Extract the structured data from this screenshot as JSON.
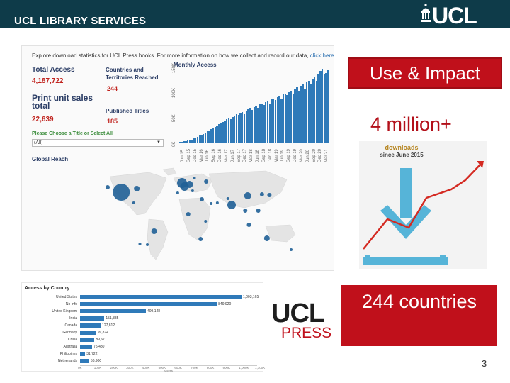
{
  "header": {
    "title": "UCL LIBRARY SERVICES",
    "logo_text": "UCL"
  },
  "dashboard": {
    "intro_text": "Explore download statistics for UCL Press books. For more information on how we collect and record our data, ",
    "intro_link": "click here.",
    "total_access_label": "Total Access",
    "total_access_value": "4,187,722",
    "countries_label_1": "Countries and",
    "countries_label_2": "Territories Reached",
    "countries_value": "244",
    "print_label_1": "Print unit sales",
    "print_label_2": "total",
    "print_value": "22,639",
    "published_label": "Published Titles",
    "published_value": "185",
    "select_label": "Please Choose a Title or Select All",
    "select_value": "(All)",
    "monthly_title": "Monthly Access",
    "monthly_yticks": [
      "0K",
      "50K",
      "100K",
      "150K"
    ],
    "monthly_xticks": [
      "Jun 15",
      "Sep 15",
      "Dec 15",
      "Mar 16",
      "Jun 16",
      "Sep 16",
      "Dec 16",
      "Mar 17",
      "Jun 17",
      "Sep 17",
      "Dec 17",
      "Mar 18",
      "Jun 18",
      "Sep 18",
      "Dec 18",
      "Mar 19",
      "Jun 19",
      "Sep 19",
      "Dec 19",
      "Mar 20",
      "Jun 20",
      "Sep 20",
      "Dec 20",
      "Mar 21"
    ],
    "monthly_values": [
      1,
      2,
      3,
      3,
      4,
      5,
      6,
      8,
      10,
      12,
      14,
      16,
      18,
      20,
      23,
      25,
      28,
      30,
      32,
      35,
      38,
      40,
      42,
      45,
      47,
      50,
      48,
      52,
      55,
      58,
      56,
      60,
      62,
      58,
      65,
      68,
      70,
      66,
      72,
      75,
      70,
      78,
      80,
      76,
      82,
      85,
      80,
      88,
      90,
      86,
      92,
      95,
      88,
      98,
      100,
      96,
      102,
      105,
      98,
      108,
      112,
      104,
      115,
      118,
      110,
      122,
      125,
      118,
      130,
      132,
      126,
      140,
      145,
      150,
      138,
      142,
      148
    ],
    "global_title": "Global Reach"
  },
  "map_bubbles": [
    {
      "lon": -100,
      "lat": 40,
      "size": 12,
      "name": "United States"
    },
    {
      "lon": 2,
      "lat": 48,
      "size": 6
    },
    {
      "lon": -2,
      "lat": 53,
      "size": 7
    },
    {
      "lon": 10,
      "lat": 51,
      "size": 5
    },
    {
      "lon": 78,
      "lat": 22,
      "size": 6
    },
    {
      "lon": 104,
      "lat": 35,
      "size": 5
    },
    {
      "lon": 135,
      "lat": -25,
      "size": 4
    },
    {
      "lon": -47,
      "lat": -15,
      "size": 4
    },
    {
      "lon": -75,
      "lat": 45,
      "size": 4
    },
    {
      "lon": 28,
      "lat": -26,
      "size": 3
    },
    {
      "lon": 121,
      "lat": 14,
      "size": 3
    },
    {
      "lon": 37,
      "lat": 55,
      "size": 3
    },
    {
      "lon": 30,
      "lat": 30,
      "size": 3
    },
    {
      "lon": 100,
      "lat": 14,
      "size": 3
    },
    {
      "lon": -58,
      "lat": -34,
      "size": 2
    },
    {
      "lon": 8,
      "lat": 9,
      "size": 3
    },
    {
      "lon": 139,
      "lat": 36,
      "size": 3
    },
    {
      "lon": 106,
      "lat": -6,
      "size": 3
    },
    {
      "lon": 45,
      "lat": 24,
      "size": 2
    },
    {
      "lon": 36,
      "lat": -1,
      "size": 2
    },
    {
      "lon": 174,
      "lat": -41,
      "size": 2
    },
    {
      "lon": -70,
      "lat": -33,
      "size": 2
    },
    {
      "lon": 127,
      "lat": 37,
      "size": 3
    },
    {
      "lon": 55,
      "lat": 25,
      "size": 2
    },
    {
      "lon": 18,
      "lat": 60,
      "size": 2
    },
    {
      "lon": -9,
      "lat": 39,
      "size": 2
    },
    {
      "lon": 15,
      "lat": 42,
      "size": 2
    },
    {
      "lon": 72,
      "lat": 31,
      "size": 2
    },
    {
      "lon": -80,
      "lat": 25,
      "size": 2
    },
    {
      "lon": -122,
      "lat": 47,
      "size": 3
    }
  ],
  "right": {
    "use_impact": "Use & Impact",
    "million": "4 million+",
    "downloads_1": "downloads",
    "downloads_2": "since June 2015",
    "countries": "244 countries"
  },
  "access_by_country": {
    "title": "Access by Country",
    "rows": [
      {
        "country": "United States",
        "value": 1003165,
        "label": "1,003,165"
      },
      {
        "country": "No Info",
        "value": 849920,
        "label": "849,920"
      },
      {
        "country": "United Kingdom",
        "value": 409148,
        "label": "409,148"
      },
      {
        "country": "India",
        "value": 151385,
        "label": "151,385"
      },
      {
        "country": "Canada",
        "value": 127812,
        "label": "127,812"
      },
      {
        "country": "Germany",
        "value": 99874,
        "label": "99,874"
      },
      {
        "country": "China",
        "value": 89671,
        "label": "89,671"
      },
      {
        "country": "Australia",
        "value": 75480,
        "label": "75,480"
      },
      {
        "country": "Philippines",
        "value": 31722,
        "label": "31,722"
      },
      {
        "country": "Netherlands",
        "value": 56900,
        "label": "56,900"
      }
    ],
    "axis_ticks": [
      "0K",
      "100K",
      "200K",
      "300K",
      "400K",
      "500K",
      "600K",
      "700K",
      "800K",
      "900K",
      "1,000K",
      "1,100K"
    ],
    "axis_label": "Access"
  },
  "press_logo": {
    "ucl": "UCL",
    "press": "PRESS"
  },
  "page_number": "3",
  "colors": {
    "header_bg": "#0e3b49",
    "accent_red": "#c0101b",
    "bar_blue": "#2f7ab9"
  }
}
